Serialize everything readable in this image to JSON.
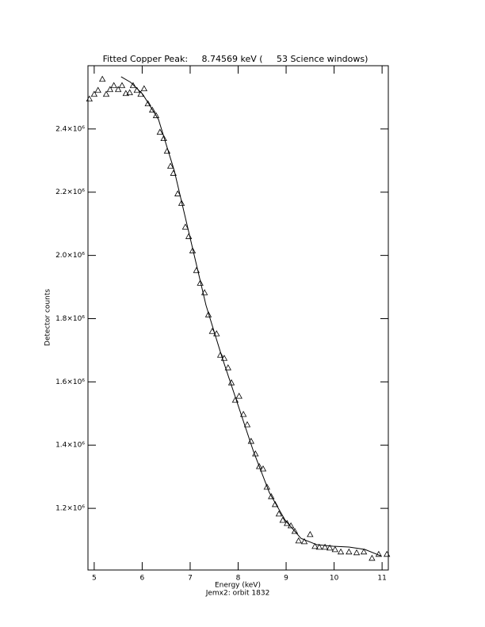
{
  "chart_data": {
    "type": "scatter",
    "title": "Fitted Copper Peak:     8.74569 keV (     53 Science windows)",
    "x_label": "Energy (keV)",
    "subtitle": "Jemx2: orbit 1832",
    "y_label": "Detector counts",
    "xlim": [
      4.87,
      11.13
    ],
    "ylim": [
      1005000,
      2600000
    ],
    "xticks": [
      5,
      6,
      7,
      8,
      9,
      10,
      11
    ],
    "yticks": [
      {
        "value": 1200000,
        "label": "1.2×10⁶"
      },
      {
        "value": 1400000,
        "label": "1.4×10⁶"
      },
      {
        "value": 1600000,
        "label": "1.6×10⁶"
      },
      {
        "value": 1800000,
        "label": "1.8×10⁶"
      },
      {
        "value": 2000000,
        "label": "2.0×10⁶"
      },
      {
        "value": 2200000,
        "label": "2.2×10⁶"
      },
      {
        "value": 2400000,
        "label": "2.4×10⁶"
      }
    ],
    "series": [
      {
        "mode": "markers",
        "color": "#000000",
        "x": [
          4.9,
          5.0,
          5.08,
          5.17,
          5.25,
          5.33,
          5.41,
          5.5,
          5.58,
          5.66,
          5.74,
          5.81,
          5.89,
          5.97,
          6.04,
          6.12,
          6.21,
          6.29,
          6.37,
          6.45,
          6.52,
          6.59,
          6.65,
          6.74,
          6.82,
          6.9,
          6.97,
          7.05,
          7.13,
          7.21,
          7.3,
          7.38,
          7.46,
          7.55,
          7.63,
          7.71,
          7.79,
          7.86,
          7.94,
          8.02,
          8.11,
          8.19,
          8.27,
          8.36,
          8.44,
          8.52,
          8.6,
          8.69,
          8.77,
          8.85,
          8.93,
          9.02,
          9.1,
          9.18,
          9.26,
          9.38,
          9.5,
          9.6,
          9.69,
          9.81,
          9.91,
          10.02,
          10.14,
          10.31,
          10.47,
          10.62,
          10.79,
          10.93,
          11.1
        ],
        "values": [
          2495000,
          2510000,
          2522500,
          2557500,
          2510000,
          2525000,
          2537500,
          2525000,
          2537500,
          2512500,
          2515000,
          2537500,
          2522500,
          2510000,
          2527500,
          2480000,
          2460000,
          2442500,
          2390000,
          2370000,
          2330000,
          2282500,
          2260000,
          2195000,
          2165000,
          2090000,
          2060000,
          2015000,
          1952500,
          1912500,
          1882500,
          1812500,
          1760000,
          1752500,
          1685000,
          1675000,
          1645000,
          1597500,
          1542500,
          1555000,
          1497500,
          1465000,
          1412500,
          1372500,
          1332500,
          1325000,
          1267500,
          1237500,
          1212500,
          1182500,
          1162500,
          1152500,
          1145000,
          1127500,
          1097500,
          1095000,
          1117500,
          1080000,
          1077500,
          1077500,
          1075000,
          1070000,
          1062500,
          1062500,
          1060000,
          1062500,
          1042500,
          1055000,
          1055000
        ]
      },
      {
        "mode": "line",
        "color": "#000000",
        "x": [
          5.56,
          5.76,
          6.01,
          6.34,
          6.67,
          7.0,
          7.33,
          7.66,
          7.99,
          8.32,
          8.65,
          8.98,
          9.31,
          9.64,
          9.98,
          10.31,
          10.64,
          10.97
        ],
        "values": [
          2565000,
          2547500,
          2510000,
          2430000,
          2267500,
          2055000,
          1842500,
          1680000,
          1530000,
          1380000,
          1250000,
          1162500,
          1105000,
          1085000,
          1080000,
          1077500,
          1070000,
          1050000
        ]
      }
    ]
  }
}
